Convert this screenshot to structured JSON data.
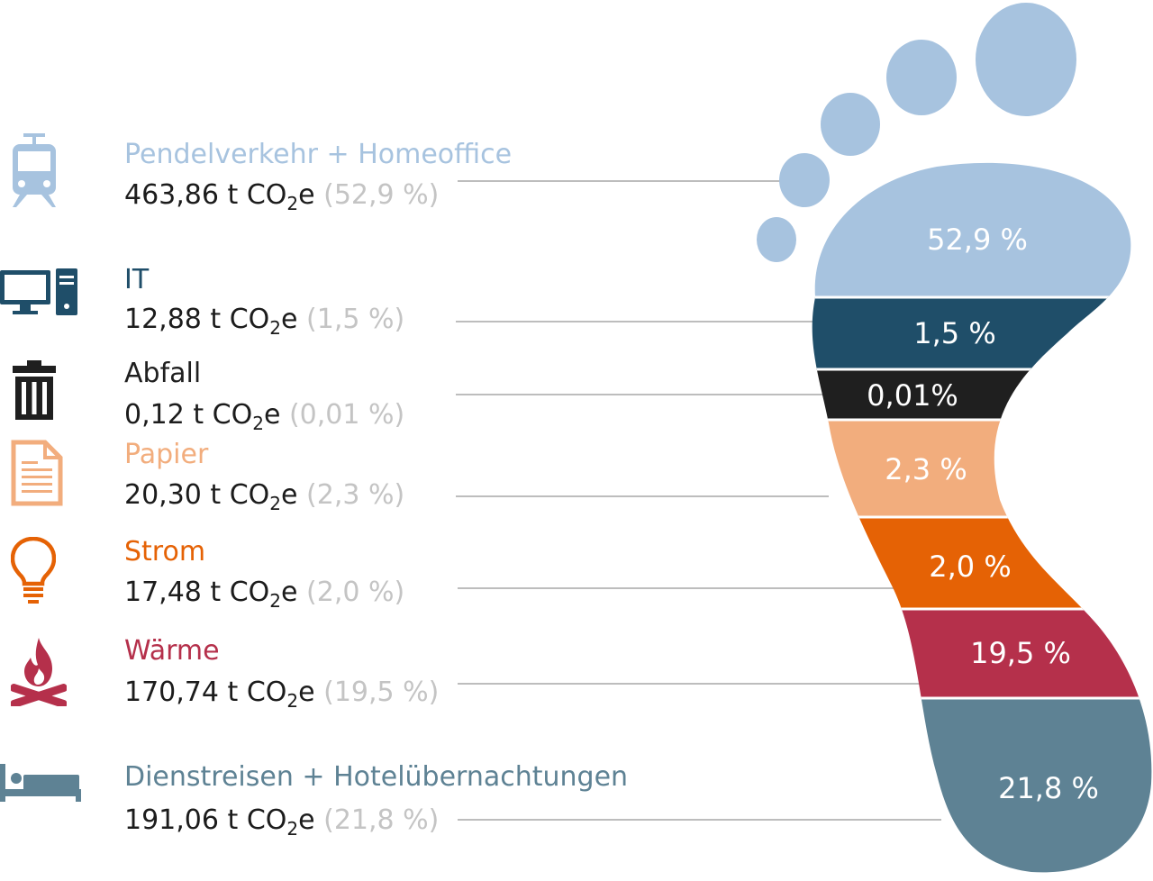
{
  "chart_data": {
    "type": "pie",
    "unit_prefix": " t CO",
    "unit_sub": "2",
    "unit_suffix": "e",
    "categories": [
      {
        "label": "Pendelverkehr + Homeoffice",
        "value": 463.86,
        "value_text": "463,86",
        "share_text": "(52,9 %)",
        "slice_label": "52,9 %",
        "color": "#a7c3df",
        "icon": "tram-icon"
      },
      {
        "label": "IT",
        "value": 12.88,
        "value_text": "12,88",
        "share_text": "(1,5 %)",
        "slice_label": "1,5 %",
        "color": "#1f4e69",
        "icon": "computer-icon"
      },
      {
        "label": "Abfall",
        "value": 0.12,
        "value_text": "0,12",
        "share_text": "(0,01 %)",
        "slice_label": "0,01%",
        "color": "#1f1f1f",
        "icon": "trash-icon"
      },
      {
        "label": "Papier",
        "value": 20.3,
        "value_text": "20,30",
        "share_text": "(2,3 %)",
        "slice_label": "2,3 %",
        "color": "#f2ad7d",
        "icon": "document-icon"
      },
      {
        "label": "Strom",
        "value": 17.48,
        "value_text": "17,48",
        "share_text": "(2,0 %)",
        "slice_label": "2,0 %",
        "color": "#e56205",
        "icon": "lightbulb-icon"
      },
      {
        "label": "Wärme",
        "value": 170.74,
        "value_text": "170,74",
        "share_text": "(19,5 %)",
        "slice_label": "19,5 %",
        "color": "#b5304b",
        "icon": "fire-icon"
      },
      {
        "label": "Dienstreisen + Hotelübernachtungen",
        "value": 191.06,
        "value_text": "191,06",
        "share_text": "(21,8 %)",
        "slice_label": "21,8 %",
        "color": "#5e8294",
        "icon": "bed-icon"
      }
    ]
  }
}
